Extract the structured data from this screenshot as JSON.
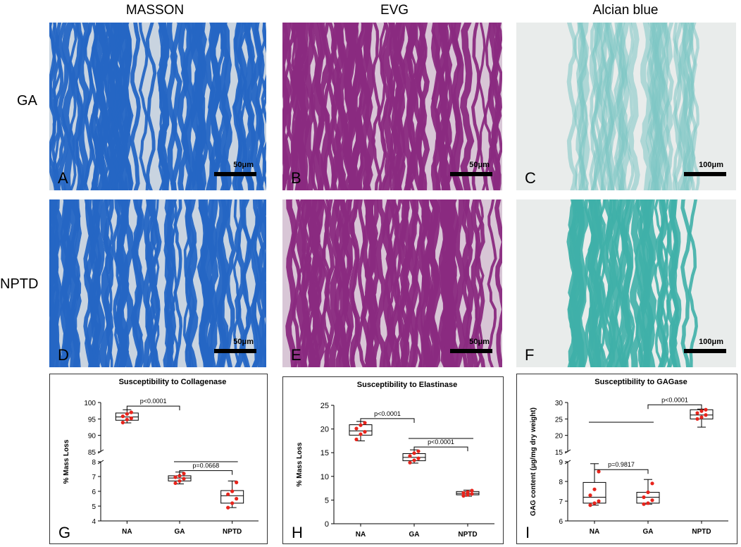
{
  "columns": [
    "MASSON",
    "EVG",
    "Alcian blue"
  ],
  "rows": [
    "GA",
    "NPTD"
  ],
  "panels": [
    {
      "label": "A",
      "scale": "50μm",
      "stain": "masson"
    },
    {
      "label": "B",
      "scale": "50μm",
      "stain": "evg"
    },
    {
      "label": "C",
      "scale": "100μm",
      "stain": "alcian-light"
    },
    {
      "label": "D",
      "scale": "50μm",
      "stain": "masson"
    },
    {
      "label": "E",
      "scale": "50μm",
      "stain": "evg"
    },
    {
      "label": "F",
      "scale": "100μm",
      "stain": "alcian-dark"
    }
  ],
  "colors": {
    "masson_bg": "#c9d4e0",
    "masson_fiber": "#2566c4",
    "evg_bg": "#d8c6d6",
    "evg_fiber": "#8a2a80",
    "alcian_bg": "#e9eceb",
    "alcian_fiber": "#7ec7c4",
    "alcian_dark": "#3fb0a8",
    "point": "#e8241c"
  },
  "chart_data": [
    {
      "type": "box",
      "panel_label": "G",
      "title": "Susceptibility to Collagenase",
      "ylabel": "% Mass Loss",
      "categories": [
        "NA",
        "GA",
        "NPTD"
      ],
      "broken_axis": {
        "lower_ylim": [
          4,
          8
        ],
        "lower_ticks": [
          4,
          5,
          6,
          7,
          8
        ],
        "upper_ylim": [
          85,
          100
        ],
        "upper_ticks": [
          85,
          90,
          95,
          100
        ]
      },
      "boxes": [
        {
          "min": 93.8,
          "q1": 94.6,
          "median": 95.6,
          "q3": 96.8,
          "max": 97.8,
          "points": [
            93.9,
            94.8,
            95.2,
            95.8,
            96.5,
            97.0
          ]
        },
        {
          "min": 6.5,
          "q1": 6.7,
          "median": 6.9,
          "q3": 7.05,
          "max": 7.3,
          "points": [
            6.55,
            6.7,
            6.85,
            6.95,
            7.05,
            7.2
          ]
        },
        {
          "min": 4.9,
          "q1": 5.2,
          "median": 5.7,
          "q3": 6.05,
          "max": 6.7,
          "points": [
            4.9,
            5.2,
            5.5,
            5.8,
            6.0,
            6.6
          ]
        }
      ],
      "annotations": [
        {
          "text": "p<0.0001",
          "from": 0,
          "to": 1,
          "y": 98.9
        },
        {
          "text": "p=0.0668",
          "from": 1,
          "to": 2,
          "y": 7.4
        }
      ],
      "lines": [
        {
          "from": 1,
          "to": 2,
          "y": 8.0
        }
      ]
    },
    {
      "type": "box",
      "panel_label": "H",
      "title": "Susceptibility to Elastinase",
      "ylabel": "% Mass Loss",
      "categories": [
        "NA",
        "GA",
        "NPTD"
      ],
      "ylim": [
        0,
        25
      ],
      "yticks": [
        0,
        5,
        10,
        15,
        20,
        25
      ],
      "boxes": [
        {
          "min": 17.5,
          "q1": 18.7,
          "median": 19.6,
          "q3": 20.9,
          "max": 21.6,
          "points": [
            17.8,
            18.9,
            19.4,
            20.1,
            20.8,
            21.3
          ]
        },
        {
          "min": 12.8,
          "q1": 13.3,
          "median": 14.0,
          "q3": 14.8,
          "max": 15.6,
          "points": [
            12.9,
            13.4,
            13.8,
            14.3,
            14.9,
            15.3
          ]
        },
        {
          "min": 5.8,
          "q1": 6.1,
          "median": 6.4,
          "q3": 6.8,
          "max": 7.1,
          "points": [
            5.9,
            6.1,
            6.3,
            6.5,
            6.7,
            7.0
          ]
        }
      ],
      "annotations": [
        {
          "text": "p<0.0001",
          "from": 0,
          "to": 1,
          "y": 22.2
        },
        {
          "text": "p<0.0001",
          "from": 1,
          "to": 2,
          "y": 16.2
        }
      ],
      "lines": [
        {
          "from": 1,
          "to": 2,
          "y": 18.0
        }
      ]
    },
    {
      "type": "box",
      "panel_label": "I",
      "title": "Susceptibility to GAGase",
      "ylabel": "GAG content (μg/mg dry weight)",
      "categories": [
        "NA",
        "GA",
        "NPTD"
      ],
      "broken_axis": {
        "lower_ylim": [
          6,
          9
        ],
        "lower_ticks": [
          6,
          7,
          8,
          9
        ],
        "upper_ylim": [
          15,
          30
        ],
        "upper_ticks": [
          15,
          20,
          25,
          30
        ]
      },
      "boxes": [
        {
          "min": 6.8,
          "q1": 6.9,
          "median": 7.2,
          "q3": 7.95,
          "max": 8.9,
          "points": [
            6.8,
            6.9,
            7.0,
            7.3,
            7.6,
            8.5
          ]
        },
        {
          "min": 6.85,
          "q1": 6.9,
          "median": 7.2,
          "q3": 7.45,
          "max": 8.1,
          "points": [
            6.85,
            6.9,
            7.05,
            7.2,
            7.45,
            7.9
          ]
        },
        {
          "min": 22.5,
          "q1": 25.0,
          "median": 26.2,
          "q3": 27.8,
          "max": 28.0,
          "points": [
            25.0,
            25.5,
            26.2,
            26.8,
            27.4,
            27.8
          ]
        }
      ],
      "annotations": [
        {
          "text": "p<0.0001",
          "from": 1,
          "to": 2,
          "y": 29.3
        },
        {
          "text": "p=0.9817",
          "from": 0,
          "to": 1,
          "y": 8.6
        }
      ],
      "lines": [
        {
          "from": 0,
          "to": 1,
          "y": 24.0
        }
      ]
    }
  ]
}
